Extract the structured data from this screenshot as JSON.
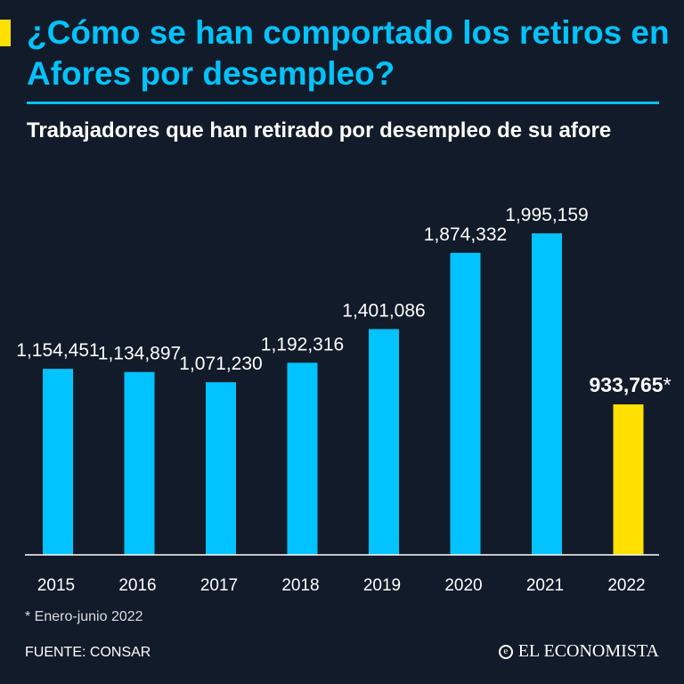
{
  "header": {
    "title": "¿Cómo se han comportado los retiros en Afores por desempleo?",
    "subtitle": "Trabajadores que han retirado por desempleo de su afore"
  },
  "colors": {
    "background": "#121b29",
    "accent_blue": "#00c3ff",
    "accent_yellow": "#ffe000",
    "text": "#ffffff"
  },
  "chart_data": {
    "type": "bar",
    "title": "Trabajadores que han retirado por desempleo de su afore",
    "categories": [
      "2015",
      "2016",
      "2017",
      "2018",
      "2019",
      "2020",
      "2021",
      "2022"
    ],
    "values": [
      1154451,
      1134897,
      1071230,
      1192316,
      1401086,
      1874332,
      1995159,
      933765
    ],
    "value_labels": [
      "1,154,451",
      "1,134,897",
      "1,071,230",
      "1,192,316",
      "1,401,086",
      "1,874,332",
      "1,995,159",
      "933,765"
    ],
    "highlight_index": 7,
    "highlight_suffix": "*",
    "xlabel": "",
    "ylabel": "",
    "ylim": [
      0,
      2000000
    ],
    "grid": false
  },
  "footer": {
    "footnote": "* Enero-junio 2022",
    "source": "FUENTE:  CONSAR",
    "brand": "EL ECONOMISTA",
    "brand_icon": "e-logo-icon"
  }
}
